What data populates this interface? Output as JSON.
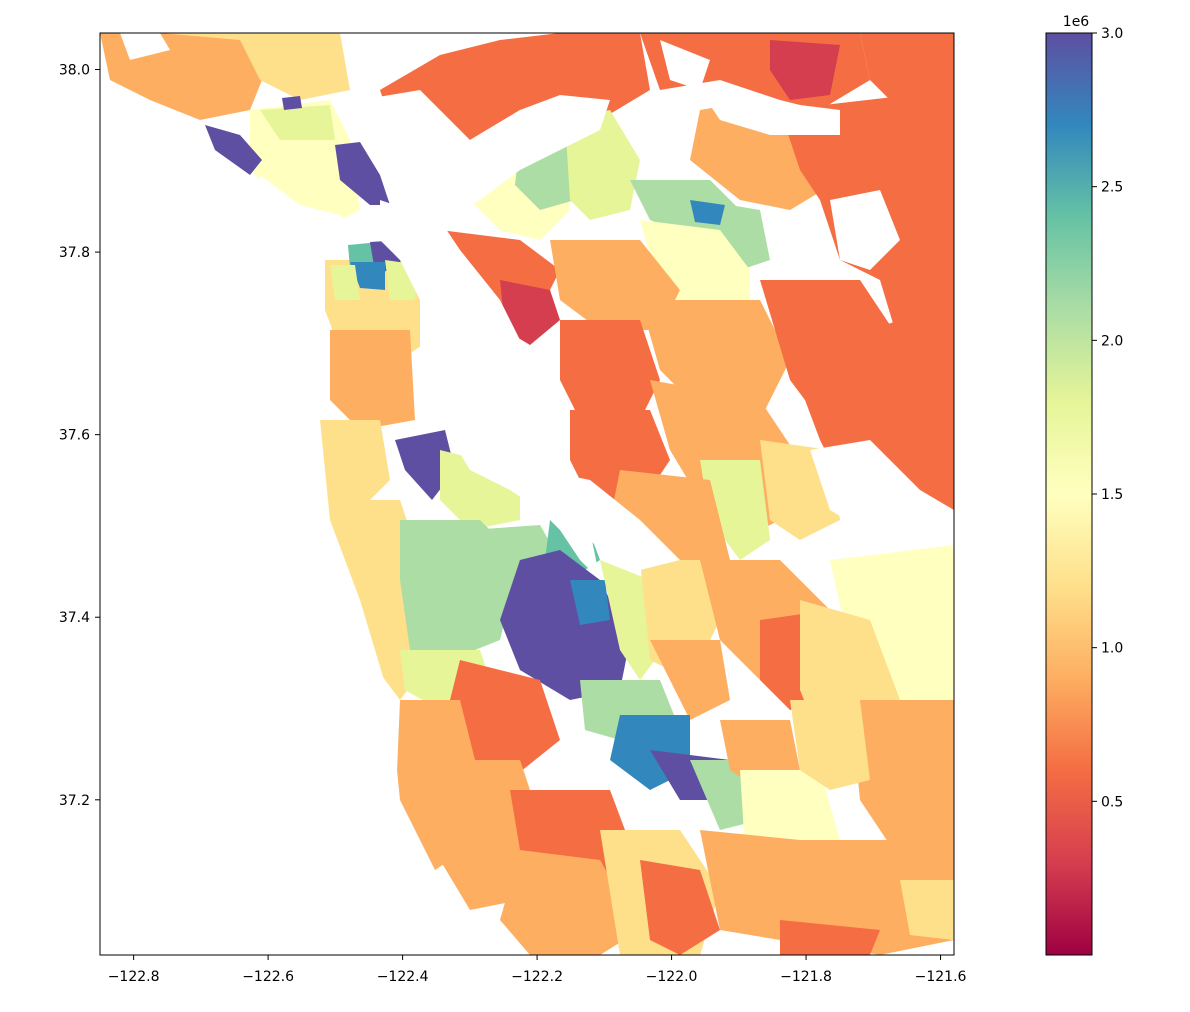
{
  "chart_data": {
    "type": "choropleth",
    "x_ticks": [
      -122.8,
      -122.6,
      -122.4,
      -122.2,
      -122.0,
      -121.8,
      -121.6
    ],
    "x_tick_labels": [
      "−122.8",
      "−122.6",
      "−122.4",
      "−122.2",
      "−122.0",
      "−121.8",
      "−121.6"
    ],
    "y_ticks": [
      37.2,
      37.4,
      37.6,
      37.8,
      38.0
    ],
    "y_tick_labels": [
      "37.2",
      "37.4",
      "37.6",
      "37.8",
      "38.0"
    ],
    "xlim": [
      -122.85,
      -121.58
    ],
    "ylim": [
      37.03,
      38.04
    ],
    "colorbar": {
      "colormap": "Spectral",
      "range": [
        0,
        3000000
      ],
      "multiplier_label": "1e6",
      "ticks": [
        0.5,
        1.0,
        1.5,
        2.0,
        2.5,
        3.0
      ],
      "tick_labels": [
        "0.5",
        "1.0",
        "1.5",
        "2.0",
        "2.5",
        "3.0"
      ]
    },
    "colors": {
      "very_high": "#5e4fa2",
      "high": "#3288bd",
      "mid_high": "#66c2a5",
      "mid": "#abdda4",
      "mid_low": "#e6f598",
      "neutral": "#ffffbf",
      "low_mid": "#fee08b",
      "low": "#fdae61",
      "lower": "#f46d43",
      "lowest": "#d53e4f"
    }
  }
}
